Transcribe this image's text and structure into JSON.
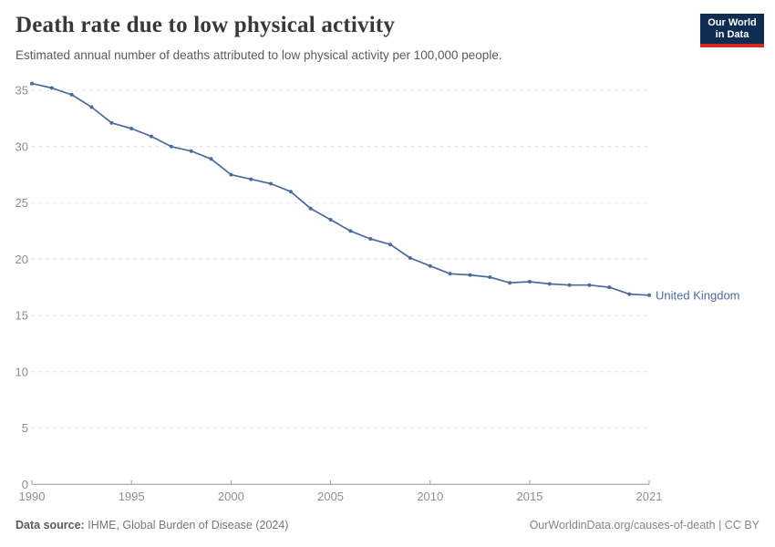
{
  "header": {
    "title": "Death rate due to low physical activity",
    "subtitle": "Estimated annual number of deaths attributed to low physical activity per 100,000 people."
  },
  "logo": {
    "line1": "Our World",
    "line2": "in Data",
    "background_color": "#0f2d52",
    "stripe_color": "#d42b21"
  },
  "chart_data": {
    "type": "line",
    "x": [
      1990,
      1991,
      1992,
      1993,
      1994,
      1995,
      1996,
      1997,
      1998,
      1999,
      2000,
      2001,
      2002,
      2003,
      2004,
      2005,
      2006,
      2007,
      2008,
      2009,
      2010,
      2011,
      2012,
      2013,
      2014,
      2015,
      2016,
      2017,
      2018,
      2019,
      2020,
      2021
    ],
    "series": [
      {
        "name": "United Kingdom",
        "color": "#4c6a9c",
        "values": [
          35.6,
          35.2,
          34.6,
          33.5,
          32.1,
          31.6,
          30.9,
          30.0,
          29.6,
          28.9,
          27.5,
          27.1,
          26.7,
          26.0,
          24.5,
          23.5,
          22.5,
          21.8,
          21.3,
          20.1,
          19.4,
          18.7,
          18.6,
          18.4,
          17.9,
          18.0,
          17.8,
          17.7,
          17.7,
          17.5,
          16.9,
          16.8
        ]
      }
    ],
    "ylim": [
      0,
      35
    ],
    "yticks": [
      0,
      5,
      10,
      15,
      20,
      25,
      30,
      35
    ],
    "xticks": [
      1990,
      1995,
      2000,
      2005,
      2010,
      2015,
      2021
    ],
    "grid": "dashed horizontal",
    "legend_position": "right of last point",
    "axis_color": "#999999",
    "gridline_color": "#dcdcdc",
    "tick_label_color": "#8f8f8f"
  },
  "footer": {
    "source_label": "Data source:",
    "source_text": "IHME, Global Burden of Disease (2024)",
    "right_text": "OurWorldinData.org/causes-of-death | CC BY"
  }
}
